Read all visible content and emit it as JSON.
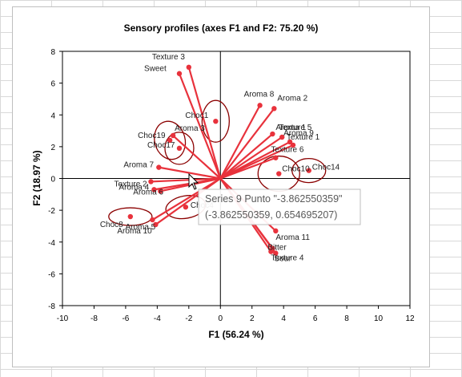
{
  "chart_data": {
    "type": "scatter",
    "title": "Sensory profiles (axes F1 and F2: 75.20 %)",
    "xlabel": "F1 (56.24 %)",
    "ylabel": "F2 (18.97 %)",
    "xlim": [
      -10,
      12
    ],
    "ylim": [
      -8,
      8
    ],
    "xticks": [
      "-10",
      "-8",
      "-6",
      "-4",
      "-2",
      "0",
      "2",
      "4",
      "6",
      "8",
      "10",
      "12"
    ],
    "yticks": [
      "8",
      "6",
      "4",
      "2",
      "0",
      "-2",
      "-4",
      "-6",
      "-8"
    ],
    "grid": false,
    "legend": "none",
    "colors": {
      "points": "#e8323c",
      "ellipses": "#8b0000",
      "frame": "#000000"
    },
    "variables": [
      {
        "label": "Texture 3",
        "x": -2.0,
        "y": 7.0
      },
      {
        "label": "Sweet",
        "x": -2.6,
        "y": 6.6
      },
      {
        "label": "Aroma 8",
        "x": 2.5,
        "y": 4.6
      },
      {
        "label": "Aroma 2",
        "x": 3.4,
        "y": 4.4
      },
      {
        "label": "Aroma 1",
        "x": 3.3,
        "y": 2.8
      },
      {
        "label": "Texture 5",
        "x": 3.9,
        "y": 2.6
      },
      {
        "label": "Aroma 9",
        "x": 4.4,
        "y": 2.3
      },
      {
        "label": "Texture 1",
        "x": 4.6,
        "y": 2.1
      },
      {
        "label": "Aroma 3",
        "x": -3.0,
        "y": 2.7
      },
      {
        "label": "Aroma 7",
        "x": -3.9,
        "y": 0.7
      },
      {
        "label": "Texture 6",
        "x": 3.5,
        "y": 1.3
      },
      {
        "label": "Texture 2",
        "x": -4.4,
        "y": -0.2
      },
      {
        "label": "Aroma 4",
        "x": -4.2,
        "y": -0.7
      },
      {
        "label": "Aroma 6",
        "x": -3.8,
        "y": -0.8
      },
      {
        "label": "Aroma 5",
        "x": -4.3,
        "y": -2.6
      },
      {
        "label": "Aroma 10",
        "x": -4.1,
        "y": -2.9
      },
      {
        "label": "Aroma 11",
        "x": 3.5,
        "y": -3.3
      },
      {
        "label": "Bitter",
        "x": 3.3,
        "y": -4.4
      },
      {
        "label": "Texture 4",
        "x": 3.5,
        "y": -4.7
      },
      {
        "label": "Sour",
        "x": 3.2,
        "y": -4.6
      }
    ],
    "observations": [
      {
        "label": "Choc1",
        "x": -0.3,
        "y": 3.6
      },
      {
        "label": "Choc19",
        "x": -3.2,
        "y": 2.4
      },
      {
        "label": "Choc17",
        "x": -2.6,
        "y": 1.9
      },
      {
        "label": "Choc10",
        "x": 3.7,
        "y": 0.3
      },
      {
        "label": "Choc14",
        "x": 5.6,
        "y": 0.5
      },
      {
        "label": "Choc4",
        "x": -2.2,
        "y": -1.8
      },
      {
        "label": "Choc8",
        "x": -5.7,
        "y": -2.4
      }
    ],
    "tooltip": {
      "line1": "Series 9 Punto \"-3.862550359\"",
      "line2": "(-3.862550359, 0.654695207)"
    }
  }
}
